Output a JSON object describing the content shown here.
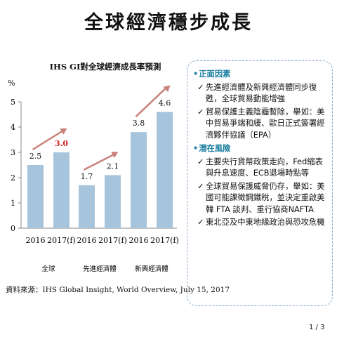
{
  "page_title": "全球經濟穩步成長",
  "chart_data": {
    "type": "bar",
    "title": "IHS GI對全球經濟成長率預測",
    "ylabel": "%",
    "ylim": [
      0,
      5
    ],
    "yticks": [
      "0",
      "1",
      "2",
      "3",
      "4",
      "5"
    ],
    "grid": false,
    "bar_color": "#a6c4dc",
    "arrow_color": "#c9827a",
    "highlight_color": "#cc2222",
    "groups": [
      {
        "name": "全球",
        "categories": [
          "2016",
          "2017(f)"
        ],
        "values": [
          2.5,
          3.0
        ],
        "labels": [
          "2.5",
          "3.0"
        ]
      },
      {
        "name": "先進經濟體",
        "categories": [
          "2016",
          "2017(f)"
        ],
        "values": [
          1.7,
          2.1
        ],
        "labels": [
          "1.7",
          "2.1"
        ]
      },
      {
        "name": "新興經濟體",
        "categories": [
          "2016",
          "2017(f)"
        ],
        "values": [
          3.8,
          4.6
        ],
        "labels": [
          "3.8",
          "4.6"
        ]
      }
    ]
  },
  "source": "資料來源：IHS Global Insight, World Overview, July 15, 2017",
  "panel": {
    "sections": [
      {
        "heading": "正面因素",
        "items": [
          "先進經濟體及新興經濟體同步復甦，全球貿易動能增強",
          "貿易保護主義陰霾暫除，舉如：美中貿易爭端和緩、歐日正式簽署經濟夥伴協議（EPA）"
        ]
      },
      {
        "heading": "潛在風險",
        "items": [
          "主要央行貨幣政策走向，Fed縮表與升息速度、ECB退場時點等",
          "全球貿易保護威脅仍存，舉如：美國可能課徵鋼鐵稅，並決定重啟美韓 FTA 談判、重行協商NAFTA",
          "東北亞及中東地緣政治與恐攻危機"
        ]
      }
    ],
    "check_mark": "✓",
    "bullet": "•"
  },
  "page_number": "1 / 3"
}
